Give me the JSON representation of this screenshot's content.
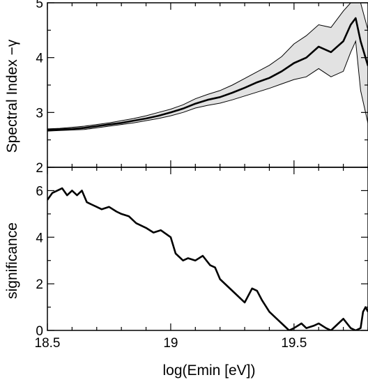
{
  "chart_data": [
    {
      "type": "area",
      "xlabel": "",
      "ylabel": "Spectral Index −γ",
      "xlim": [
        18.5,
        19.8
      ],
      "ylim": [
        2,
        5
      ],
      "xticks_labeled": [],
      "yticks_labeled": [
        2,
        3,
        4,
        5
      ],
      "series": [
        {
          "x": [
            18.5,
            18.55,
            18.6,
            18.65,
            18.7,
            18.75,
            18.8,
            18.85,
            18.9,
            18.95,
            19.0,
            19.05,
            19.1,
            19.15,
            19.2,
            19.25,
            19.3,
            19.35,
            19.4,
            19.45,
            19.5,
            19.55,
            19.6,
            19.65,
            19.7,
            19.73,
            19.75,
            19.77,
            19.8
          ],
          "values": [
            2.68,
            2.69,
            2.7,
            2.72,
            2.75,
            2.78,
            2.81,
            2.85,
            2.89,
            2.94,
            3.0,
            3.07,
            3.16,
            3.23,
            3.28,
            3.36,
            3.45,
            3.55,
            3.63,
            3.75,
            3.9,
            4.0,
            4.2,
            4.1,
            4.3,
            4.6,
            4.72,
            4.3,
            3.85
          ]
        },
        {
          "x": [
            18.5,
            18.55,
            18.6,
            18.65,
            18.7,
            18.75,
            18.8,
            18.85,
            18.9,
            18.95,
            19.0,
            19.05,
            19.1,
            19.15,
            19.2,
            19.25,
            19.3,
            19.35,
            19.4,
            19.45,
            19.5,
            19.55,
            19.6,
            19.65,
            19.7,
            19.73,
            19.75,
            19.77,
            19.8
          ],
          "values": [
            2.7,
            2.71,
            2.73,
            2.75,
            2.78,
            2.81,
            2.85,
            2.89,
            2.94,
            3.0,
            3.06,
            3.14,
            3.25,
            3.33,
            3.4,
            3.5,
            3.62,
            3.74,
            3.86,
            4.02,
            4.25,
            4.4,
            4.6,
            4.55,
            4.85,
            5.0,
            5.0,
            5.0,
            4.5
          ]
        },
        {
          "x": [
            18.5,
            18.55,
            18.6,
            18.65,
            18.7,
            18.75,
            18.8,
            18.85,
            18.9,
            18.95,
            19.0,
            19.05,
            19.1,
            19.15,
            19.2,
            19.25,
            19.3,
            19.35,
            19.4,
            19.45,
            19.5,
            19.55,
            19.6,
            19.65,
            19.7,
            19.73,
            19.75,
            19.77,
            19.8
          ],
          "values": [
            2.66,
            2.67,
            2.68,
            2.69,
            2.72,
            2.75,
            2.78,
            2.81,
            2.85,
            2.89,
            2.94,
            3.0,
            3.08,
            3.13,
            3.17,
            3.23,
            3.3,
            3.37,
            3.44,
            3.52,
            3.6,
            3.65,
            3.8,
            3.65,
            3.75,
            4.1,
            4.3,
            3.4,
            2.8
          ]
        }
      ]
    },
    {
      "type": "line",
      "xlabel": "log(Emin  [eV])",
      "ylabel": "significance",
      "xlim": [
        18.5,
        19.8
      ],
      "ylim": [
        0,
        7
      ],
      "xticks_labeled": [
        "18.5",
        "19",
        "19.5"
      ],
      "yticks_labeled": [
        0,
        2,
        4,
        6
      ],
      "series": [
        {
          "x": [
            18.5,
            18.52,
            18.54,
            18.56,
            18.58,
            18.6,
            18.62,
            18.64,
            18.66,
            18.68,
            18.7,
            18.72,
            18.75,
            18.78,
            18.8,
            18.83,
            18.86,
            18.9,
            18.93,
            18.96,
            19.0,
            19.02,
            19.05,
            19.07,
            19.1,
            19.13,
            19.16,
            19.18,
            19.2,
            19.23,
            19.26,
            19.3,
            19.33,
            19.35,
            19.37,
            19.4,
            19.43,
            19.45,
            19.48,
            19.5,
            19.53,
            19.55,
            19.58,
            19.6,
            19.63,
            19.65,
            19.68,
            19.7,
            19.73,
            19.75,
            19.77,
            19.78,
            19.79,
            19.8
          ],
          "values": [
            5.6,
            5.9,
            6.0,
            6.1,
            5.8,
            6.0,
            5.8,
            6.0,
            5.5,
            5.4,
            5.3,
            5.2,
            5.3,
            5.1,
            5.0,
            4.9,
            4.6,
            4.4,
            4.2,
            4.3,
            4.0,
            3.3,
            3.0,
            3.1,
            3.0,
            3.2,
            2.8,
            2.7,
            2.2,
            1.9,
            1.6,
            1.2,
            1.8,
            1.7,
            1.3,
            0.8,
            0.5,
            0.3,
            0.0,
            0.1,
            0.3,
            0.1,
            0.2,
            0.3,
            0.1,
            0.0,
            0.3,
            0.5,
            0.1,
            0.0,
            0.1,
            0.8,
            1.0,
            0.8
          ]
        }
      ]
    }
  ]
}
